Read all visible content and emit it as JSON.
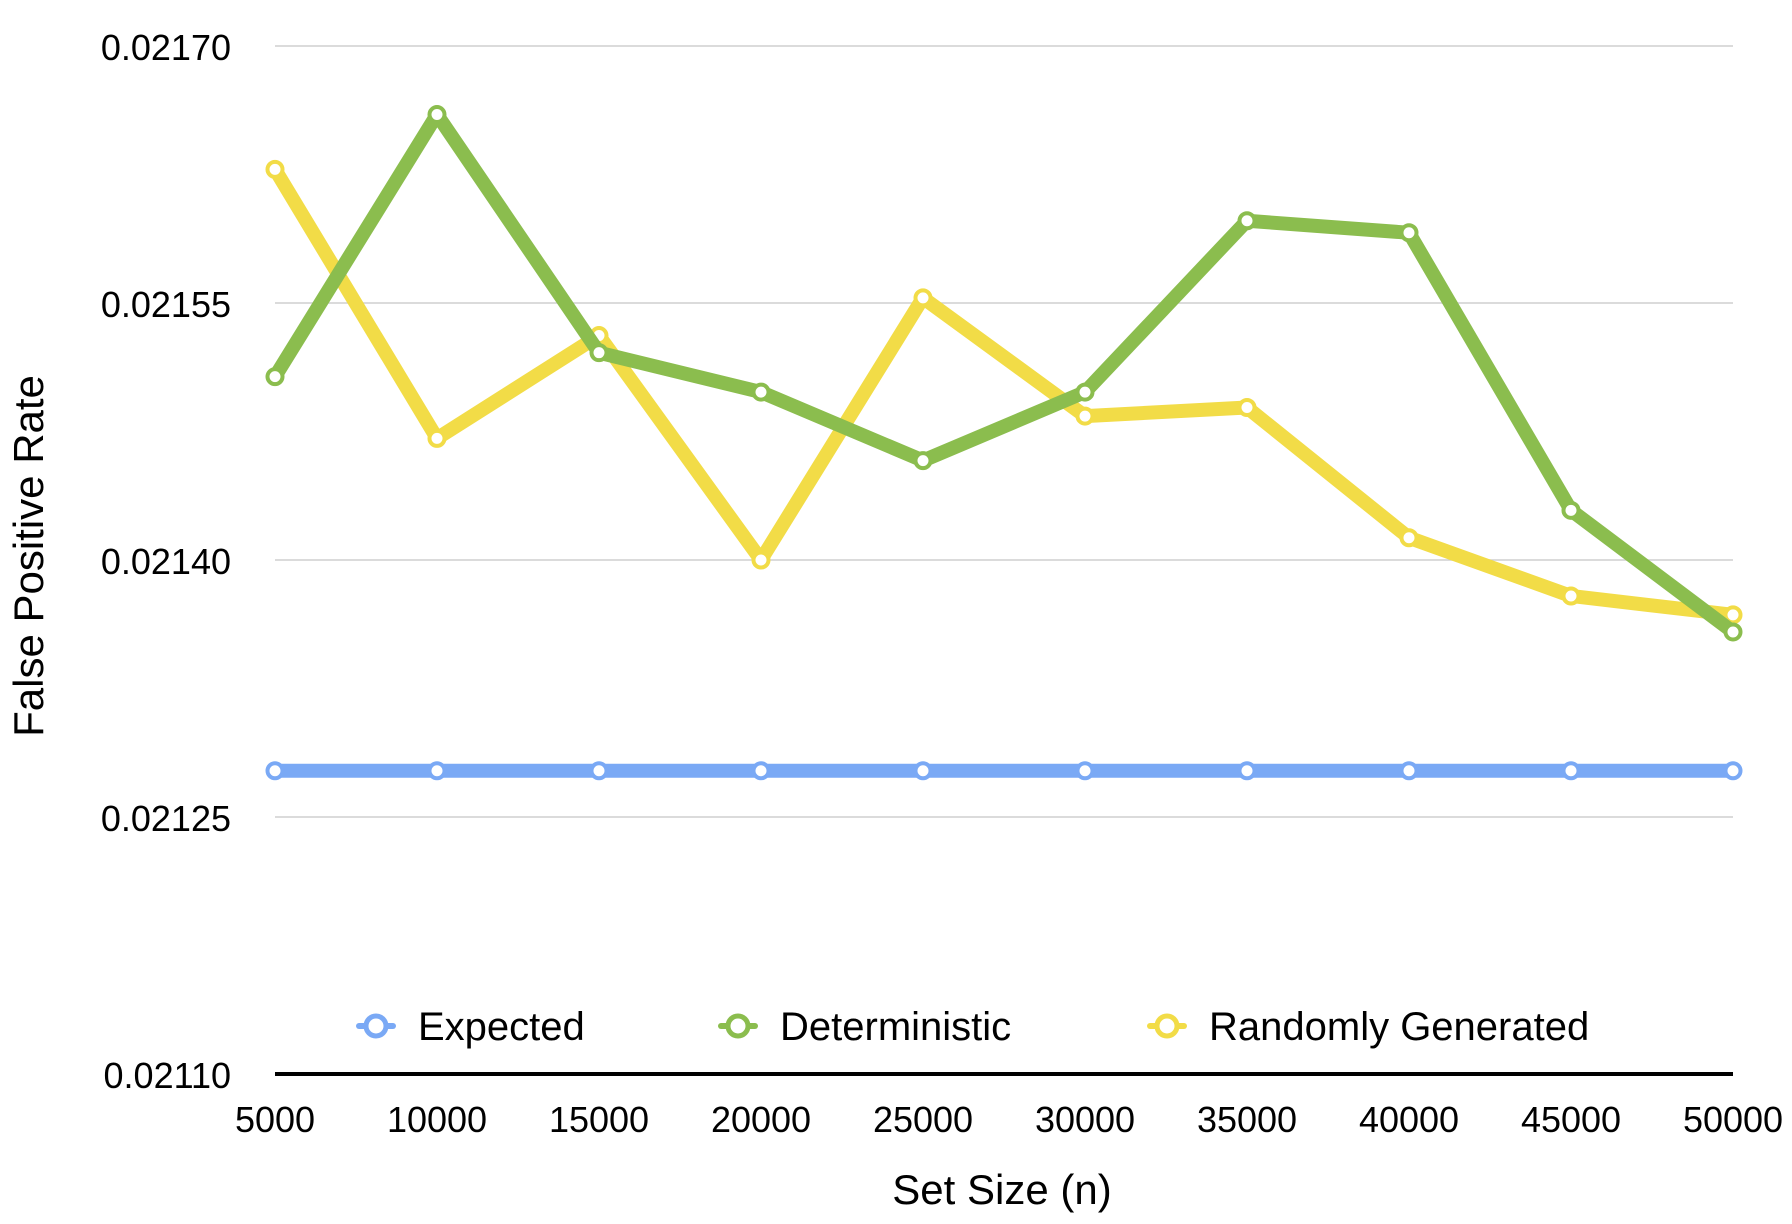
{
  "chart_data": {
    "type": "line",
    "xlabel": "Set Size (n)",
    "ylabel": "False Positive Rate",
    "x": [
      5000,
      10000,
      15000,
      20000,
      25000,
      30000,
      35000,
      40000,
      45000,
      50000
    ],
    "x_tick_labels": [
      "5000",
      "10000",
      "15000",
      "20000",
      "25000",
      "30000",
      "35000",
      "40000",
      "45000",
      "50000"
    ],
    "ylim": [
      0.0211,
      0.0217
    ],
    "y_ticks": [
      0.0211,
      0.02125,
      0.0214,
      0.02155,
      0.0217
    ],
    "y_tick_labels": [
      "0.02110",
      "0.02125",
      "0.02140",
      "0.02155",
      "0.02170"
    ],
    "grid": true,
    "legend_position": "bottom-inside",
    "series": [
      {
        "name": "Expected",
        "color": "#7aa9f5",
        "values": [
          0.021277,
          0.021277,
          0.021277,
          0.021277,
          0.021277,
          0.021277,
          0.021277,
          0.021277,
          0.021277,
          0.021277
        ]
      },
      {
        "name": "Deterministic",
        "color": "#8bbd4e",
        "values": [
          0.021507,
          0.02166,
          0.021521,
          0.021498,
          0.021458,
          0.021498,
          0.021598,
          0.021591,
          0.021429,
          0.021358
        ]
      },
      {
        "name": "Randomly Generated",
        "color": "#f2dc47",
        "values": [
          0.021628,
          0.021471,
          0.021531,
          0.0214,
          0.021553,
          0.021484,
          0.021489,
          0.021413,
          0.021379,
          0.021368
        ]
      }
    ]
  }
}
